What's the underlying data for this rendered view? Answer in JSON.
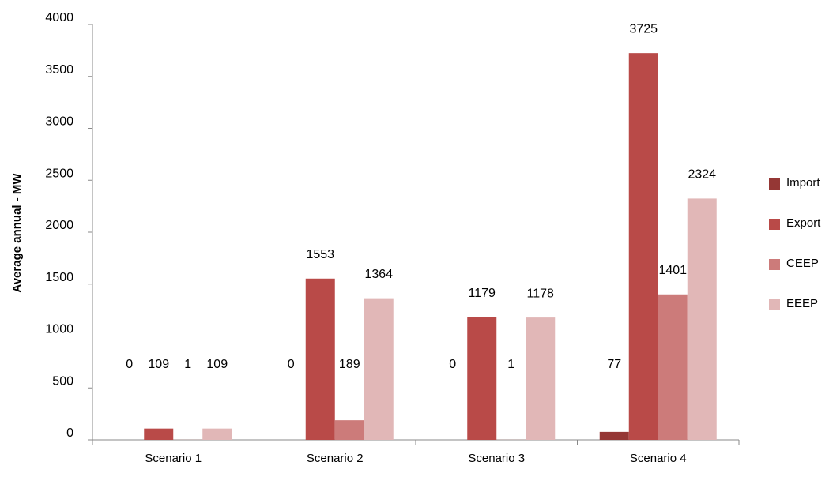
{
  "chart_data": {
    "type": "bar",
    "ylabel": "Average annual  - MW",
    "categories": [
      "Scenario 1",
      "Scenario 2",
      "Scenario 3",
      "Scenario 4"
    ],
    "series": [
      {
        "name": "Import",
        "color": "#953735",
        "values": [
          0,
          0,
          0,
          77
        ]
      },
      {
        "name": "Export",
        "color": "#b94a48",
        "values": [
          109,
          1553,
          1179,
          3725
        ]
      },
      {
        "name": "CEEP",
        "color": "#cc7b7a",
        "values": [
          1,
          189,
          1,
          1401
        ]
      },
      {
        "name": "EEEP",
        "color": "#e1b7b7",
        "values": [
          109,
          1364,
          1178,
          2324
        ]
      }
    ],
    "ylim": [
      0,
      4000
    ],
    "yticks": [
      0,
      500,
      1000,
      1500,
      2000,
      2500,
      3000,
      3500,
      4000
    ],
    "legend": "right"
  }
}
